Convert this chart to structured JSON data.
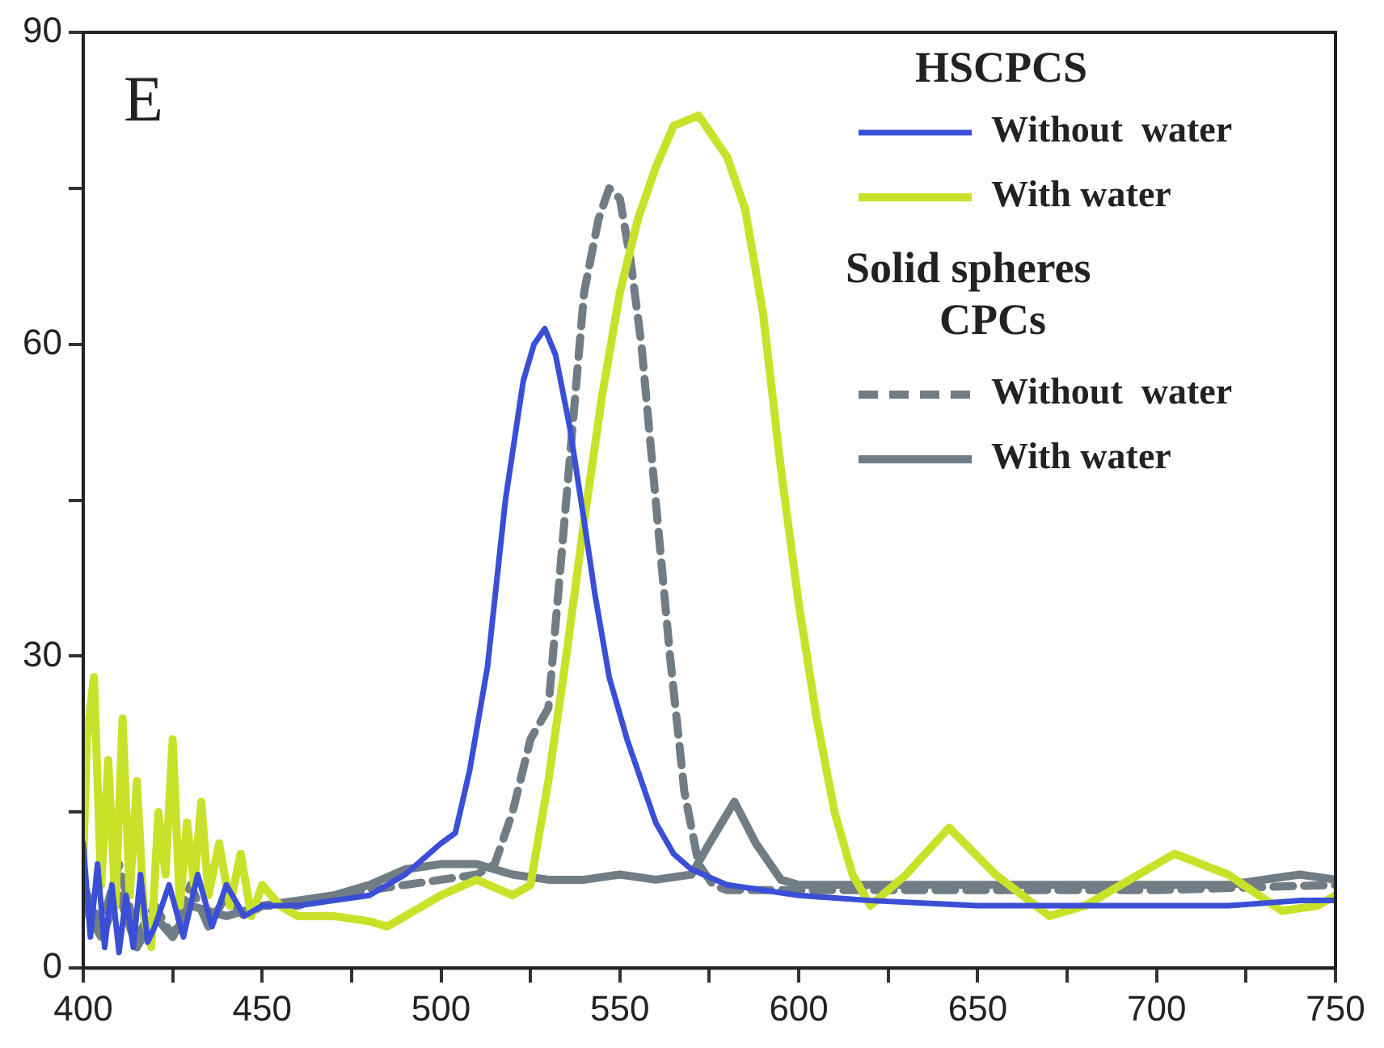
{
  "chart_data": {
    "type": "line",
    "annotations": [
      "E",
      "Solid spheres CPCs"
    ],
    "legend_title": "HSCPCS",
    "legend": "top right",
    "marker": "none",
    "grid": false,
    "xlim": [
      400,
      750
    ],
    "xticks": [
      400,
      {
        "value": 425,
        "label": null
      },
      450,
      {
        "value": 475,
        "label": null
      },
      500,
      {
        "value": 525,
        "label": null
      },
      550,
      {
        "value": 575,
        "label": null
      },
      600,
      {
        "value": 625,
        "label": null
      },
      650,
      {
        "value": 675,
        "label": null
      },
      700,
      {
        "value": 725,
        "label": null
      },
      750
    ],
    "ylim": [
      0,
      90
    ],
    "yticks": [
      0,
      {
        "value": 15,
        "label": null
      },
      30,
      {
        "value": 45,
        "label": null
      },
      60,
      {
        "value": 75,
        "label": null
      },
      90
    ],
    "series": [
      {
        "name": "Without  water",
        "color": "#3a4fd6",
        "line_style": "solid",
        "x": [
          400,
          402,
          404,
          406,
          408,
          410,
          412,
          414,
          416,
          418,
          420,
          424,
          428,
          432,
          436,
          440,
          445,
          450,
          460,
          470,
          480,
          490,
          500,
          504,
          508,
          513,
          518,
          523,
          526,
          529,
          532,
          536,
          540,
          543,
          547,
          552,
          556,
          560,
          565,
          570,
          580,
          590,
          600,
          620,
          650,
          680,
          700,
          720,
          740,
          750
        ],
        "values": [
          12,
          3,
          10,
          2,
          8,
          1.5,
          7,
          2,
          9,
          2.5,
          4,
          8,
          3,
          9,
          4,
          8,
          5,
          6,
          6,
          6.5,
          7,
          9,
          12,
          13,
          19,
          29,
          45,
          56.5,
          60,
          61.5,
          59,
          52,
          43,
          36,
          28,
          22,
          18,
          14,
          11,
          9.5,
          8,
          7.5,
          7,
          6.5,
          6,
          6,
          6,
          6,
          6.5,
          6.5
        ]
      },
      {
        "name": "With water",
        "color": "#c8e22a",
        "line_style": "solid",
        "x": [
          400,
          401,
          403,
          405,
          407,
          409,
          411,
          413,
          415,
          417,
          419,
          421,
          423,
          425,
          427,
          429,
          431,
          433,
          435,
          438,
          441,
          444,
          447,
          450,
          455,
          460,
          470,
          480,
          485,
          490,
          500,
          510,
          520,
          525,
          530,
          535,
          540,
          545,
          550,
          555,
          560,
          565,
          572,
          580,
          585,
          590,
          595,
          600,
          605,
          610,
          615,
          620,
          630,
          642,
          655,
          670,
          680,
          690,
          705,
          720,
          735,
          745,
          750
        ],
        "values": [
          10,
          22,
          28,
          8,
          20,
          6,
          24,
          7,
          18,
          5,
          2,
          15,
          9,
          22,
          6,
          14,
          8,
          16,
          7,
          12,
          6,
          11,
          5,
          8,
          6,
          5,
          5,
          4.5,
          4,
          5,
          7,
          8.5,
          7,
          8,
          18,
          30,
          43,
          55,
          65,
          72,
          77,
          81,
          82,
          78,
          73,
          63,
          48,
          35,
          24,
          15,
          9,
          6,
          9,
          13.5,
          9,
          5,
          6,
          8,
          11,
          9,
          5.5,
          6,
          7
        ]
      },
      {
        "name": "Without  water",
        "color": "#717d84",
        "line_style": "dashed",
        "x": [
          400,
          405,
          410,
          415,
          420,
          425,
          430,
          435,
          440,
          445,
          450,
          460,
          470,
          480,
          490,
          500,
          510,
          515,
          520,
          525,
          530,
          535,
          540,
          544,
          547,
          550,
          553,
          556,
          560,
          564,
          568,
          572,
          576,
          580,
          590,
          600,
          650,
          700,
          750
        ],
        "values": [
          8,
          4,
          10,
          3,
          6,
          3,
          8,
          4,
          7,
          5,
          6,
          6,
          7,
          7.5,
          8,
          8.5,
          9,
          10,
          15,
          22,
          25,
          45,
          65,
          72,
          75,
          74,
          68,
          60,
          45,
          30,
          17,
          10,
          8,
          7.5,
          7.5,
          7.5,
          7.5,
          7.5,
          8
        ]
      },
      {
        "name": "With water",
        "color": "#717d84",
        "line_style": "solid",
        "x": [
          400,
          405,
          410,
          415,
          420,
          425,
          430,
          440,
          450,
          460,
          470,
          480,
          490,
          500,
          510,
          520,
          530,
          540,
          550,
          560,
          570,
          575,
          582,
          588,
          595,
          600,
          620,
          650,
          680,
          700,
          720,
          740,
          750
        ],
        "values": [
          6,
          3,
          7,
          2,
          5,
          3,
          6,
          5,
          6,
          6.5,
          7,
          8,
          9.5,
          10,
          10,
          9,
          8.5,
          8.5,
          9,
          8.5,
          9,
          12,
          16,
          12,
          8.5,
          8,
          8,
          8,
          8,
          8,
          8,
          9,
          8.5
        ]
      }
    ]
  }
}
